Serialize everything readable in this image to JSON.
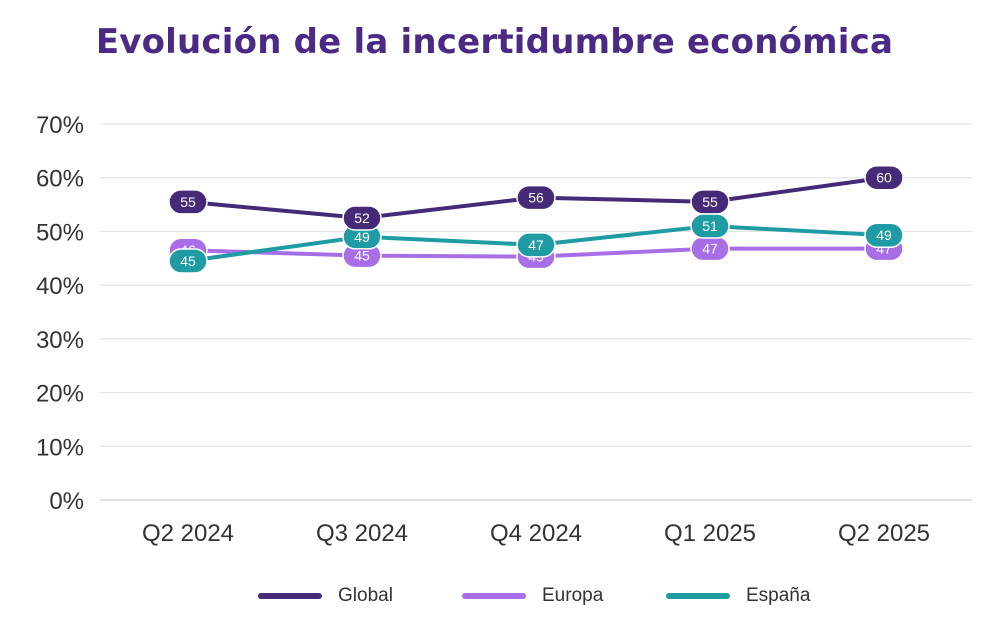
{
  "colors": {
    "title": "#4b2a85",
    "grid": "#e4e4e4",
    "axis": "#cfcfcf"
  },
  "chart_data": {
    "type": "line",
    "title": "Evolución de la incertidumbre económica",
    "categories": [
      "Q2 2024",
      "Q3 2024",
      "Q4 2024",
      "Q1 2025",
      "Q2 2025"
    ],
    "ylim": [
      0,
      70
    ],
    "yticks": [
      "0%",
      "10%",
      "20%",
      "30%",
      "40%",
      "50%",
      "60%",
      "70%"
    ],
    "grid": true,
    "legend_position": "bottom",
    "series": [
      {
        "name": "Global",
        "color": "#452a78",
        "values": [
          55.5,
          52.5,
          56.3,
          55.5,
          60
        ],
        "labels": [
          "55",
          "52",
          "56",
          "55",
          "60"
        ]
      },
      {
        "name": "Europa",
        "color": "#a86ee8",
        "values": [
          46.5,
          45.5,
          45.3,
          46.8,
          46.8
        ],
        "labels": [
          "46",
          "45",
          "45",
          "47",
          "47"
        ]
      },
      {
        "name": "España",
        "color": "#1f9ba4",
        "values": [
          44.5,
          49,
          47.5,
          51,
          49.3
        ],
        "labels": [
          "45",
          "49",
          "47",
          "51",
          "49"
        ]
      }
    ]
  }
}
